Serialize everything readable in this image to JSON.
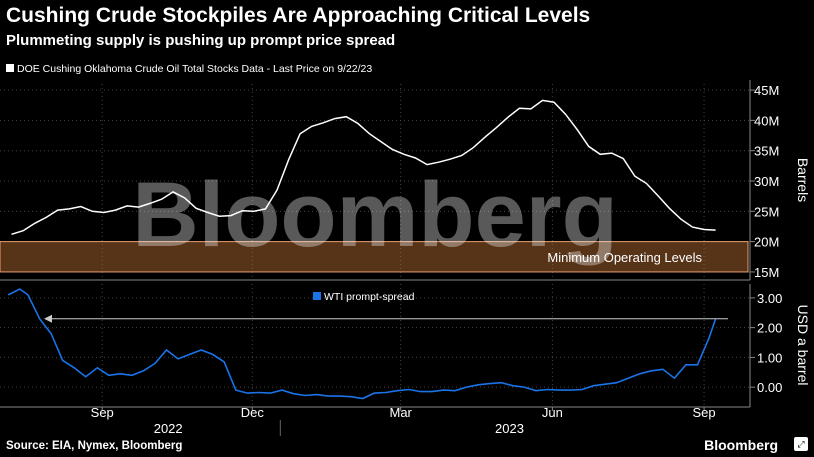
{
  "header": {
    "title": "Cushing Crude Stockpiles Are Approaching Critical Levels",
    "subtitle": "Plummeting supply is pushing up prompt price spread"
  },
  "footer": {
    "source": "Source: EIA, Nymex, Bloomberg",
    "brand": "Bloomberg"
  },
  "watermark": "Bloomberg",
  "colors": {
    "background": "#000000",
    "stocks_line": "#ffffff",
    "spread_line": "#1a73e8",
    "zone_fill": "#d07a3a",
    "zone_border": "#e8a070"
  },
  "chart_data": [
    {
      "type": "line",
      "legend": "DOE Cushing Oklahoma Crude Oil Total Stocks Data - Last Price on 9/22/23",
      "ylabel": "Barrels",
      "ylim": [
        14,
        46
      ],
      "yticks": [
        "15M",
        "20M",
        "25M",
        "30M",
        "35M",
        "40M",
        "45M"
      ],
      "ytick_values": [
        15,
        20,
        25,
        30,
        35,
        40,
        45
      ],
      "x": [
        "2022-07-22",
        "2022-07-29",
        "2022-08-05",
        "2022-08-12",
        "2022-08-19",
        "2022-08-26",
        "2022-09-02",
        "2022-09-09",
        "2022-09-16",
        "2022-09-23",
        "2022-09-30",
        "2022-10-07",
        "2022-10-14",
        "2022-10-21",
        "2022-10-28",
        "2022-11-04",
        "2022-11-11",
        "2022-11-18",
        "2022-11-25",
        "2022-12-02",
        "2022-12-09",
        "2022-12-16",
        "2022-12-23",
        "2022-12-30",
        "2023-01-06",
        "2023-01-13",
        "2023-01-20",
        "2023-01-27",
        "2023-02-03",
        "2023-02-10",
        "2023-02-17",
        "2023-02-24",
        "2023-03-03",
        "2023-03-10",
        "2023-03-17",
        "2023-03-24",
        "2023-03-31",
        "2023-04-07",
        "2023-04-14",
        "2023-04-21",
        "2023-04-28",
        "2023-05-05",
        "2023-05-12",
        "2023-05-19",
        "2023-05-26",
        "2023-06-02",
        "2023-06-09",
        "2023-06-16",
        "2023-06-23",
        "2023-06-30",
        "2023-07-07",
        "2023-07-14",
        "2023-07-21",
        "2023-07-28",
        "2023-08-04",
        "2023-08-11",
        "2023-08-18",
        "2023-08-25",
        "2023-09-01",
        "2023-09-08",
        "2023-09-15",
        "2023-09-22"
      ],
      "series": [
        {
          "name": "DOE Cushing Oklahoma Crude Oil Total Stocks Data",
          "values": [
            21.2,
            21.8,
            23.0,
            24.0,
            25.2,
            25.4,
            25.8,
            25.0,
            24.8,
            25.2,
            25.9,
            25.7,
            26.3,
            27.0,
            28.2,
            27.2,
            25.5,
            24.8,
            24.2,
            24.3,
            25.1,
            25.0,
            25.4,
            28.5,
            33.5,
            37.8,
            39.0,
            39.6,
            40.3,
            40.6,
            39.5,
            37.8,
            36.5,
            35.2,
            34.4,
            33.8,
            32.7,
            33.1,
            33.6,
            34.2,
            35.5,
            37.2,
            38.8,
            40.5,
            42.0,
            41.9,
            43.3,
            43.0,
            41.0,
            38.5,
            35.7,
            34.4,
            34.6,
            33.7,
            30.8,
            29.6,
            27.6,
            25.5,
            23.7,
            22.4,
            22.0,
            21.9
          ]
        }
      ],
      "annotation": "Minimum Operating Levels",
      "annotation_range": [
        15,
        20
      ]
    },
    {
      "type": "line",
      "legend": "WTI prompt-spread",
      "ylabel": "USD a barrel",
      "ylim": [
        -0.6,
        3.4
      ],
      "yticks": [
        "0.00",
        "1.00",
        "2.00",
        "3.00"
      ],
      "ytick_values": [
        0,
        1,
        2,
        3
      ],
      "x_ticks": [
        "Sep",
        "Dec",
        "Mar",
        "Jun",
        "Sep"
      ],
      "x_tick_dates": [
        "2022-09-15",
        "2022-12-15",
        "2023-03-15",
        "2023-06-15",
        "2023-09-15"
      ],
      "years": [
        "2022",
        "2023"
      ],
      "arrow_level": 2.3,
      "x": [
        "2022-07-20",
        "2022-07-27",
        "2022-08-01",
        "2022-08-08",
        "2022-08-15",
        "2022-08-22",
        "2022-08-29",
        "2022-09-05",
        "2022-09-12",
        "2022-09-19",
        "2022-09-26",
        "2022-10-03",
        "2022-10-10",
        "2022-10-17",
        "2022-10-24",
        "2022-10-31",
        "2022-11-07",
        "2022-11-14",
        "2022-11-21",
        "2022-11-28",
        "2022-12-05",
        "2022-12-12",
        "2022-12-19",
        "2022-12-26",
        "2023-01-02",
        "2023-01-09",
        "2023-01-16",
        "2023-01-23",
        "2023-01-30",
        "2023-02-06",
        "2023-02-13",
        "2023-02-20",
        "2023-02-27",
        "2023-03-06",
        "2023-03-13",
        "2023-03-20",
        "2023-03-27",
        "2023-04-03",
        "2023-04-10",
        "2023-04-17",
        "2023-04-24",
        "2023-05-01",
        "2023-05-08",
        "2023-05-15",
        "2023-05-22",
        "2023-05-29",
        "2023-06-05",
        "2023-06-12",
        "2023-06-19",
        "2023-06-26",
        "2023-07-03",
        "2023-07-10",
        "2023-07-17",
        "2023-07-24",
        "2023-07-31",
        "2023-08-07",
        "2023-08-14",
        "2023-08-21",
        "2023-08-28",
        "2023-09-04",
        "2023-09-11",
        "2023-09-18",
        "2023-09-22"
      ],
      "series": [
        {
          "name": "WTI prompt-spread",
          "values": [
            3.1,
            3.3,
            3.1,
            2.3,
            1.8,
            0.9,
            0.65,
            0.35,
            0.65,
            0.4,
            0.45,
            0.4,
            0.55,
            0.8,
            1.25,
            0.95,
            1.1,
            1.25,
            1.1,
            0.85,
            -0.1,
            -0.2,
            -0.18,
            -0.2,
            -0.1,
            -0.22,
            -0.28,
            -0.25,
            -0.3,
            -0.3,
            -0.32,
            -0.38,
            -0.2,
            -0.18,
            -0.12,
            -0.08,
            -0.15,
            -0.15,
            -0.1,
            -0.12,
            0.0,
            0.08,
            0.12,
            0.15,
            0.05,
            0.0,
            -0.12,
            -0.08,
            -0.1,
            -0.1,
            -0.08,
            0.05,
            0.1,
            0.15,
            0.3,
            0.45,
            0.55,
            0.6,
            0.3,
            0.75,
            0.75,
            1.65,
            2.3
          ]
        }
      ]
    }
  ]
}
